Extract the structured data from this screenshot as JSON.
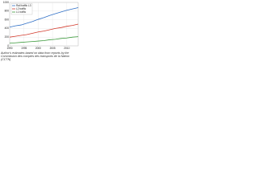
{
  "chart_data": {
    "type": "line",
    "x": [
      1990,
      1992,
      1994,
      1996,
      1998,
      2000,
      2002,
      2004,
      2006,
      2008,
      2010,
      2012,
      2014
    ],
    "series": [
      {
        "name": "Rail traffic L3",
        "color": "#2f6fc6",
        "values": [
          430,
          460,
          480,
          520,
          560,
          610,
          650,
          700,
          740,
          780,
          820,
          850,
          880
        ]
      },
      {
        "name": "L2 traffic",
        "color": "#d23a2c",
        "values": [
          200,
          220,
          240,
          260,
          290,
          320,
          340,
          370,
          400,
          420,
          450,
          470,
          500
        ]
      },
      {
        "name": "L1 traffic",
        "color": "#3c9a3c",
        "values": [
          60,
          70,
          80,
          90,
          100,
          110,
          120,
          140,
          150,
          170,
          180,
          200,
          210
        ]
      }
    ],
    "xlim": [
      1990,
      2014
    ],
    "xticks": [
      1990,
      1995,
      2000,
      2005,
      2010
    ],
    "ylim": [
      0,
      1000
    ],
    "yticks": [
      0,
      200,
      400,
      600,
      800,
      1000
    ],
    "grid": true,
    "legend": "upper-left",
    "caption": "Author's estimates based on data from reports by the Commission des comptes des transports de la Nation (CCTN)"
  }
}
